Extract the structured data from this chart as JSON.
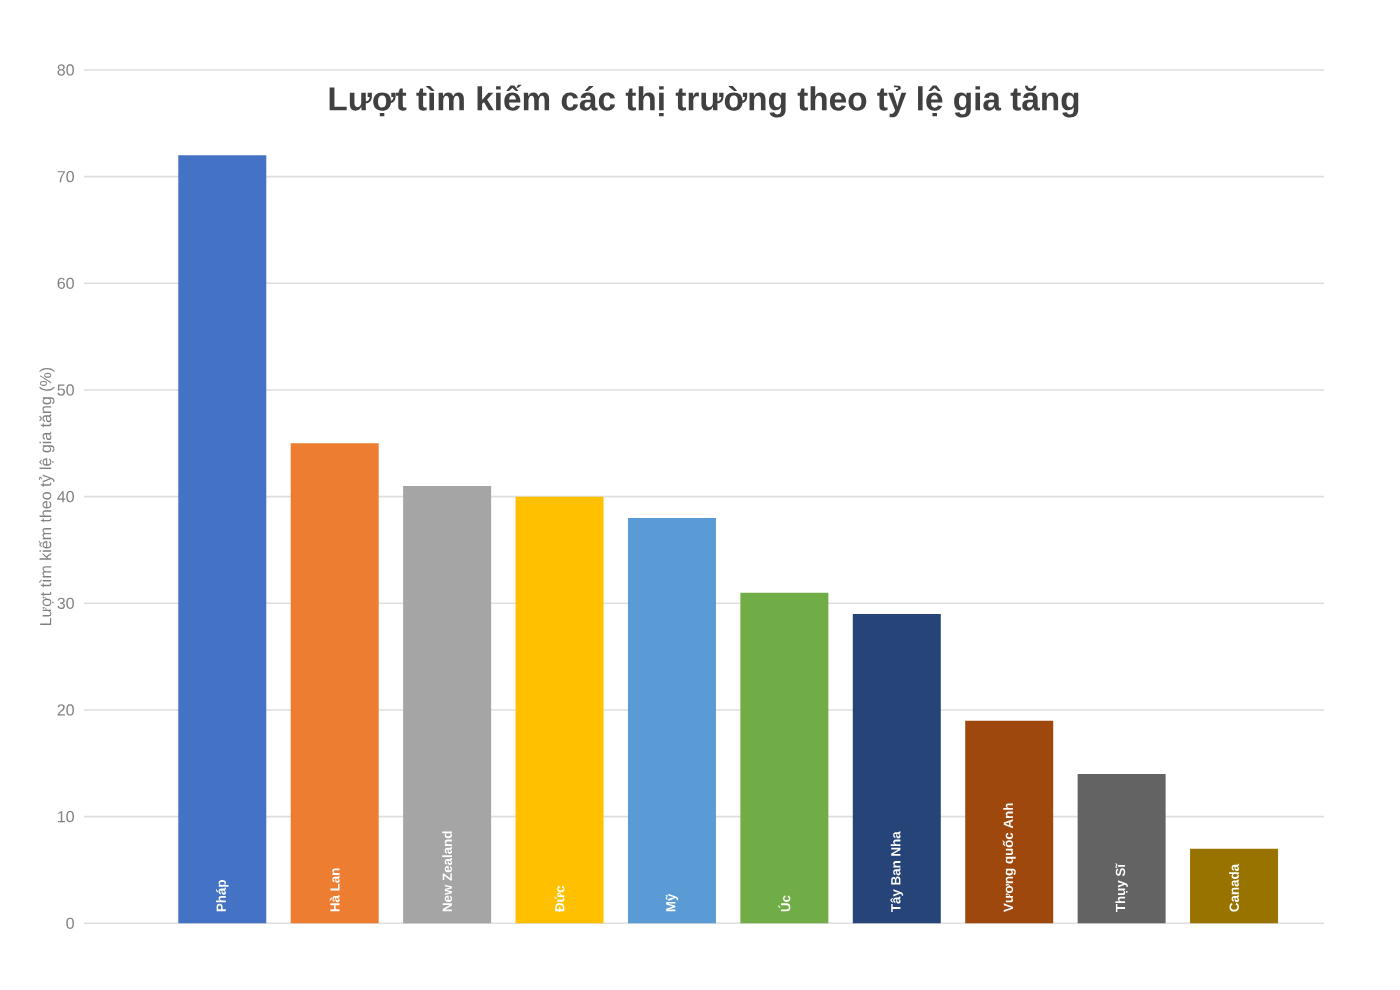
{
  "chart_data": {
    "type": "bar",
    "title": "Lượt tìm kiếm các thị trường theo tỷ lệ gia tăng",
    "ylabel": "Lượt tìm kiếm theo tỷ lệ gia tăng (%)",
    "categories": [
      "Pháp",
      "Hà Lan",
      "New Zealand",
      "Đức",
      "Mỹ",
      "Úc",
      "Tây Ban Nha",
      "Vương quốc Anh",
      "Thụy Sĩ",
      "Canada"
    ],
    "values": [
      72,
      45,
      41,
      40,
      38,
      31,
      29,
      19,
      14,
      7
    ],
    "colors": [
      "#4472c4",
      "#ed7d31",
      "#a5a5a5",
      "#ffc000",
      "#5b9bd5",
      "#70ad47",
      "#264478",
      "#9e480e",
      "#636363",
      "#997300"
    ],
    "ylim": [
      0,
      80
    ],
    "yticks": [
      0,
      10,
      20,
      30,
      40,
      50,
      60,
      70,
      80
    ],
    "grid": "y"
  }
}
